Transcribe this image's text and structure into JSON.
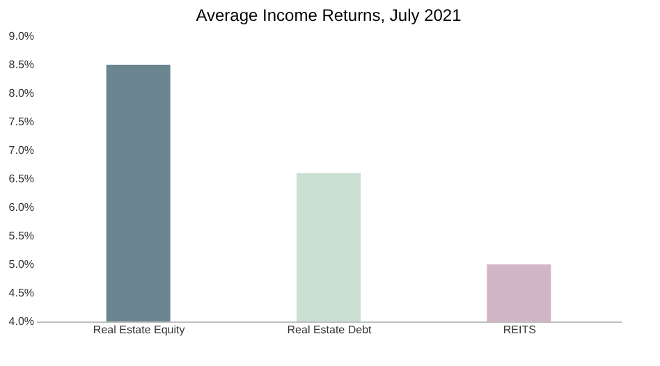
{
  "chart_data": {
    "type": "bar",
    "title": "Average Income Returns, July 2021",
    "categories": [
      "Real Estate Equity",
      "Real Estate Debt",
      "REITS"
    ],
    "values": [
      8.5,
      6.6,
      5.0
    ],
    "colors": [
      "#6b8591",
      "#c9dfd2",
      "#d3b5c8"
    ],
    "ylim": [
      4.0,
      9.0
    ],
    "yticks": [
      {
        "value": 4.0,
        "label": "4.0%"
      },
      {
        "value": 4.5,
        "label": "4.5%"
      },
      {
        "value": 5.0,
        "label": "5.0%"
      },
      {
        "value": 5.5,
        "label": "5.5%"
      },
      {
        "value": 6.0,
        "label": "6.0%"
      },
      {
        "value": 6.5,
        "label": "6.5%"
      },
      {
        "value": 7.0,
        "label": "7.0%"
      },
      {
        "value": 7.5,
        "label": "7.5%"
      },
      {
        "value": 8.0,
        "label": "8.0%"
      },
      {
        "value": 8.5,
        "label": "8.5%"
      },
      {
        "value": 9.0,
        "label": "9.0%"
      }
    ],
    "grid": false
  }
}
